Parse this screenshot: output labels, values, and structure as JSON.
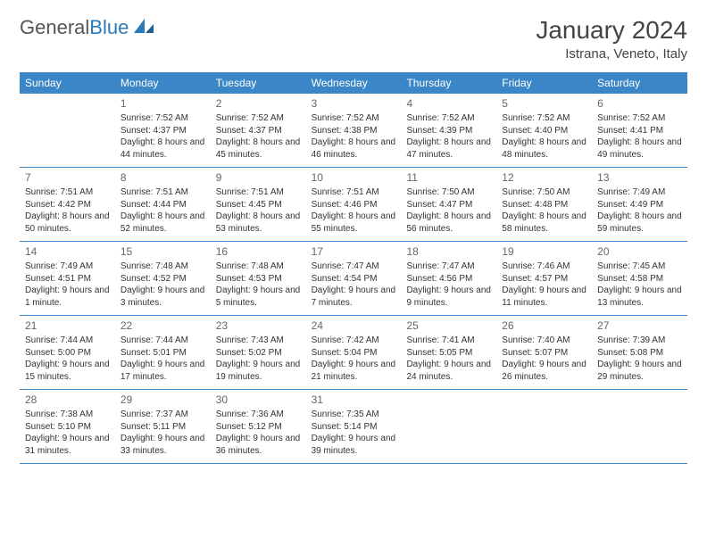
{
  "logo": {
    "text1": "General",
    "text2": "Blue"
  },
  "title": "January 2024",
  "subtitle": "Istrana, Veneto, Italy",
  "colors": {
    "header_bg": "#3b86c6",
    "header_fg": "#ffffff",
    "row_border": "#3b86c6",
    "logo_gray": "#555555",
    "logo_blue": "#2a7ab9",
    "text": "#333333",
    "daynum": "#666666",
    "page_bg": "#ffffff"
  },
  "typography": {
    "title_fontsize": 28,
    "subtitle_fontsize": 15,
    "dow_fontsize": 12,
    "daynum_fontsize": 12,
    "body_fontsize": 10
  },
  "days_of_week": [
    "Sunday",
    "Monday",
    "Tuesday",
    "Wednesday",
    "Thursday",
    "Friday",
    "Saturday"
  ],
  "weeks": [
    [
      {
        "num": "",
        "sunrise": "",
        "sunset": "",
        "daylight": ""
      },
      {
        "num": "1",
        "sunrise": "Sunrise: 7:52 AM",
        "sunset": "Sunset: 4:37 PM",
        "daylight": "Daylight: 8 hours and 44 minutes."
      },
      {
        "num": "2",
        "sunrise": "Sunrise: 7:52 AM",
        "sunset": "Sunset: 4:37 PM",
        "daylight": "Daylight: 8 hours and 45 minutes."
      },
      {
        "num": "3",
        "sunrise": "Sunrise: 7:52 AM",
        "sunset": "Sunset: 4:38 PM",
        "daylight": "Daylight: 8 hours and 46 minutes."
      },
      {
        "num": "4",
        "sunrise": "Sunrise: 7:52 AM",
        "sunset": "Sunset: 4:39 PM",
        "daylight": "Daylight: 8 hours and 47 minutes."
      },
      {
        "num": "5",
        "sunrise": "Sunrise: 7:52 AM",
        "sunset": "Sunset: 4:40 PM",
        "daylight": "Daylight: 8 hours and 48 minutes."
      },
      {
        "num": "6",
        "sunrise": "Sunrise: 7:52 AM",
        "sunset": "Sunset: 4:41 PM",
        "daylight": "Daylight: 8 hours and 49 minutes."
      }
    ],
    [
      {
        "num": "7",
        "sunrise": "Sunrise: 7:51 AM",
        "sunset": "Sunset: 4:42 PM",
        "daylight": "Daylight: 8 hours and 50 minutes."
      },
      {
        "num": "8",
        "sunrise": "Sunrise: 7:51 AM",
        "sunset": "Sunset: 4:44 PM",
        "daylight": "Daylight: 8 hours and 52 minutes."
      },
      {
        "num": "9",
        "sunrise": "Sunrise: 7:51 AM",
        "sunset": "Sunset: 4:45 PM",
        "daylight": "Daylight: 8 hours and 53 minutes."
      },
      {
        "num": "10",
        "sunrise": "Sunrise: 7:51 AM",
        "sunset": "Sunset: 4:46 PM",
        "daylight": "Daylight: 8 hours and 55 minutes."
      },
      {
        "num": "11",
        "sunrise": "Sunrise: 7:50 AM",
        "sunset": "Sunset: 4:47 PM",
        "daylight": "Daylight: 8 hours and 56 minutes."
      },
      {
        "num": "12",
        "sunrise": "Sunrise: 7:50 AM",
        "sunset": "Sunset: 4:48 PM",
        "daylight": "Daylight: 8 hours and 58 minutes."
      },
      {
        "num": "13",
        "sunrise": "Sunrise: 7:49 AM",
        "sunset": "Sunset: 4:49 PM",
        "daylight": "Daylight: 8 hours and 59 minutes."
      }
    ],
    [
      {
        "num": "14",
        "sunrise": "Sunrise: 7:49 AM",
        "sunset": "Sunset: 4:51 PM",
        "daylight": "Daylight: 9 hours and 1 minute."
      },
      {
        "num": "15",
        "sunrise": "Sunrise: 7:48 AM",
        "sunset": "Sunset: 4:52 PM",
        "daylight": "Daylight: 9 hours and 3 minutes."
      },
      {
        "num": "16",
        "sunrise": "Sunrise: 7:48 AM",
        "sunset": "Sunset: 4:53 PM",
        "daylight": "Daylight: 9 hours and 5 minutes."
      },
      {
        "num": "17",
        "sunrise": "Sunrise: 7:47 AM",
        "sunset": "Sunset: 4:54 PM",
        "daylight": "Daylight: 9 hours and 7 minutes."
      },
      {
        "num": "18",
        "sunrise": "Sunrise: 7:47 AM",
        "sunset": "Sunset: 4:56 PM",
        "daylight": "Daylight: 9 hours and 9 minutes."
      },
      {
        "num": "19",
        "sunrise": "Sunrise: 7:46 AM",
        "sunset": "Sunset: 4:57 PM",
        "daylight": "Daylight: 9 hours and 11 minutes."
      },
      {
        "num": "20",
        "sunrise": "Sunrise: 7:45 AM",
        "sunset": "Sunset: 4:58 PM",
        "daylight": "Daylight: 9 hours and 13 minutes."
      }
    ],
    [
      {
        "num": "21",
        "sunrise": "Sunrise: 7:44 AM",
        "sunset": "Sunset: 5:00 PM",
        "daylight": "Daylight: 9 hours and 15 minutes."
      },
      {
        "num": "22",
        "sunrise": "Sunrise: 7:44 AM",
        "sunset": "Sunset: 5:01 PM",
        "daylight": "Daylight: 9 hours and 17 minutes."
      },
      {
        "num": "23",
        "sunrise": "Sunrise: 7:43 AM",
        "sunset": "Sunset: 5:02 PM",
        "daylight": "Daylight: 9 hours and 19 minutes."
      },
      {
        "num": "24",
        "sunrise": "Sunrise: 7:42 AM",
        "sunset": "Sunset: 5:04 PM",
        "daylight": "Daylight: 9 hours and 21 minutes."
      },
      {
        "num": "25",
        "sunrise": "Sunrise: 7:41 AM",
        "sunset": "Sunset: 5:05 PM",
        "daylight": "Daylight: 9 hours and 24 minutes."
      },
      {
        "num": "26",
        "sunrise": "Sunrise: 7:40 AM",
        "sunset": "Sunset: 5:07 PM",
        "daylight": "Daylight: 9 hours and 26 minutes."
      },
      {
        "num": "27",
        "sunrise": "Sunrise: 7:39 AM",
        "sunset": "Sunset: 5:08 PM",
        "daylight": "Daylight: 9 hours and 29 minutes."
      }
    ],
    [
      {
        "num": "28",
        "sunrise": "Sunrise: 7:38 AM",
        "sunset": "Sunset: 5:10 PM",
        "daylight": "Daylight: 9 hours and 31 minutes."
      },
      {
        "num": "29",
        "sunrise": "Sunrise: 7:37 AM",
        "sunset": "Sunset: 5:11 PM",
        "daylight": "Daylight: 9 hours and 33 minutes."
      },
      {
        "num": "30",
        "sunrise": "Sunrise: 7:36 AM",
        "sunset": "Sunset: 5:12 PM",
        "daylight": "Daylight: 9 hours and 36 minutes."
      },
      {
        "num": "31",
        "sunrise": "Sunrise: 7:35 AM",
        "sunset": "Sunset: 5:14 PM",
        "daylight": "Daylight: 9 hours and 39 minutes."
      },
      {
        "num": "",
        "sunrise": "",
        "sunset": "",
        "daylight": ""
      },
      {
        "num": "",
        "sunrise": "",
        "sunset": "",
        "daylight": ""
      },
      {
        "num": "",
        "sunrise": "",
        "sunset": "",
        "daylight": ""
      }
    ]
  ]
}
